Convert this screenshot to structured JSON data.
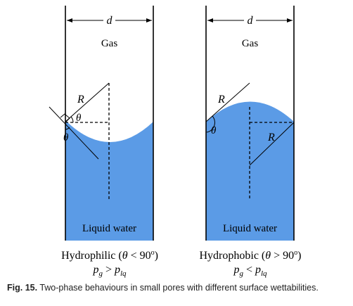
{
  "left_panel": {
    "width_label": "d",
    "gas_label": "Gas",
    "radius_label": "R",
    "angle_label": "θ",
    "liquid_label": "Liquid water",
    "title_prefix": "Hydrophilic (",
    "title_theta": "θ",
    "title_relation": " < 90",
    "title_degree": "o",
    "title_suffix": ")",
    "pressure_lhs_base": "p",
    "pressure_lhs_sub": "g",
    "pressure_op": " > ",
    "pressure_rhs_base": "p",
    "pressure_rhs_sub": "lq"
  },
  "right_panel": {
    "width_label": "d",
    "gas_label": "Gas",
    "radius_label": "R",
    "angle_label": "θ",
    "liquid_label": "Liquid water",
    "title_prefix": "Hydrophobic (",
    "title_theta": "θ",
    "title_relation": " > 90",
    "title_degree": "o",
    "title_suffix": ")",
    "pressure_lhs_base": "p",
    "pressure_lhs_sub": "g",
    "pressure_op": " < ",
    "pressure_rhs_base": "p",
    "pressure_rhs_sub": "lq"
  },
  "caption": {
    "label": "Fig. 15.",
    "text": " Two-phase behaviours in small pores with different surface wettabilities."
  },
  "colors": {
    "water": "#5b9be6",
    "line": "#000000"
  }
}
